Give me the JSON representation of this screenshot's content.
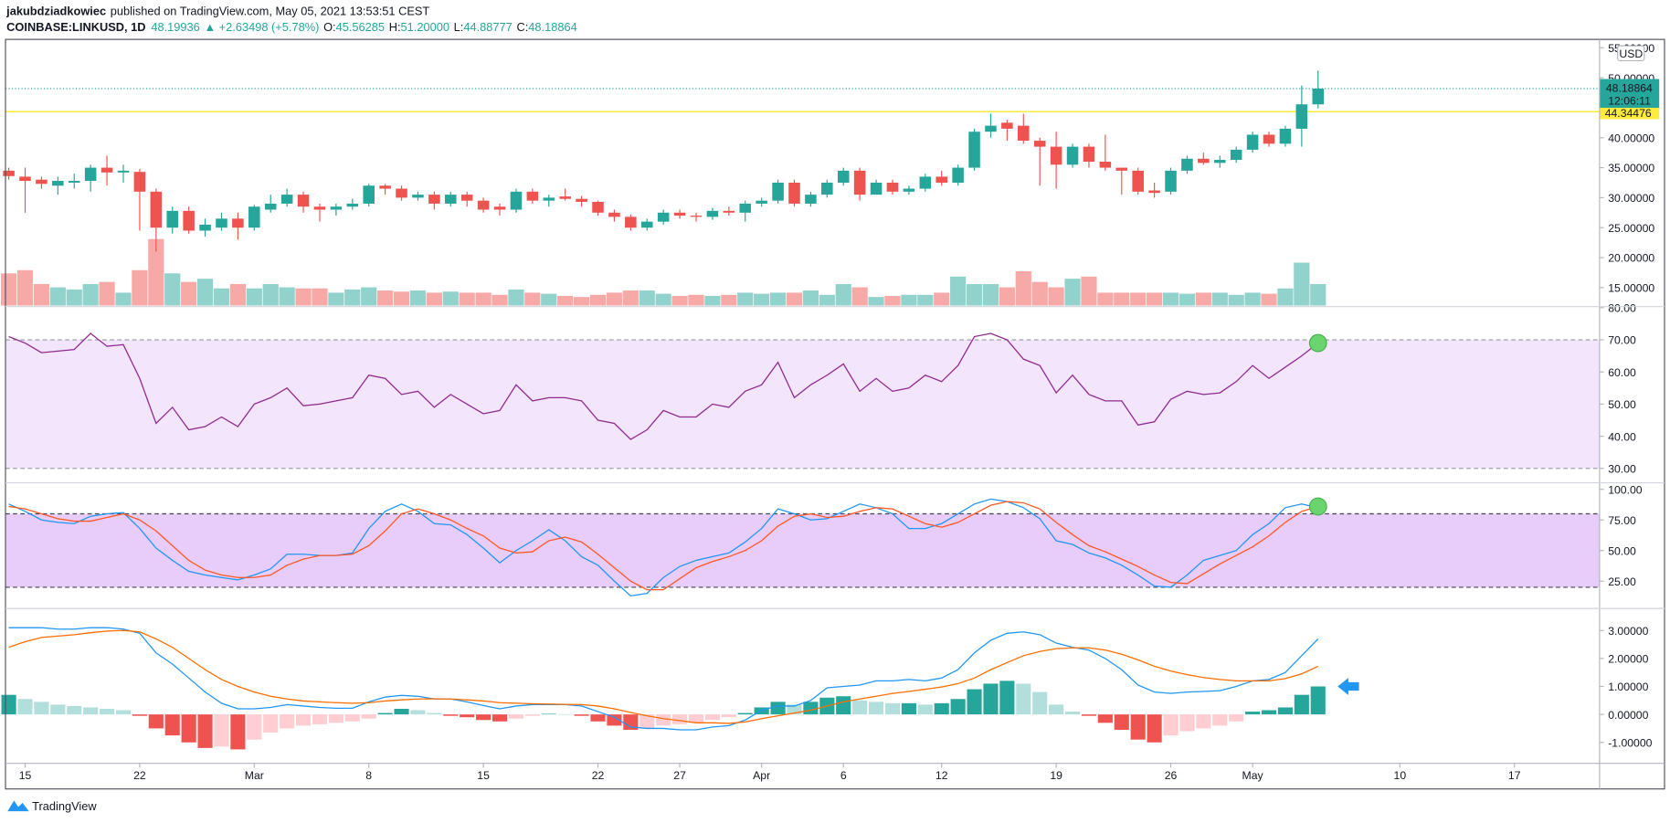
{
  "header": {
    "author": "jakubdziadkowiec",
    "published": "published on TradingView.com, May 05, 2021 13:53:51 CEST",
    "symbol": "COINBASE:LINKUSD, 1D",
    "last": "48.19936",
    "change": "▲ +2.63498 (+5.78%)",
    "open_label": "O:",
    "open": "45.56285",
    "high_label": "H:",
    "high": "51.20000",
    "low_label": "L:",
    "low": "44.88777",
    "close_label": "C:",
    "close": "48.18864"
  },
  "footer": {
    "brand": "TradingView"
  },
  "chart_data": [
    {
      "type": "candlestick",
      "currency": "USD",
      "xlim": [
        -0.2,
        97.2
      ],
      "xticks": [
        {
          "value": 1,
          "label": "15"
        },
        {
          "value": 8,
          "label": "22"
        },
        {
          "value": 15,
          "label": "Mar"
        },
        {
          "value": 22,
          "label": "8"
        },
        {
          "value": 29,
          "label": "15"
        },
        {
          "value": 36,
          "label": "22"
        },
        {
          "value": 41,
          "label": "27"
        },
        {
          "value": 46,
          "label": "Apr"
        },
        {
          "value": 51,
          "label": "6"
        },
        {
          "value": 57,
          "label": "12"
        },
        {
          "value": 64,
          "label": "19"
        },
        {
          "value": 71,
          "label": "26"
        },
        {
          "value": 76,
          "label": "May"
        },
        {
          "value": 85,
          "label": "10"
        },
        {
          "value": 92,
          "label": "17"
        }
      ],
      "ylim": [
        12,
        56.4
      ],
      "yticks": [
        {
          "value": 55,
          "label": "55.00000"
        },
        {
          "value": 50,
          "label": "50.00000"
        },
        {
          "value": 40,
          "label": "40.00000"
        },
        {
          "value": 35,
          "label": "35.00000"
        },
        {
          "value": 30,
          "label": "30.00000"
        },
        {
          "value": 25,
          "label": "25.00000"
        },
        {
          "value": 20,
          "label": "20.00000"
        },
        {
          "value": 15,
          "label": "15.00000"
        }
      ],
      "up_color": "#26a69a",
      "down_color": "#ef5350",
      "open": [
        34.5,
        33.5,
        33,
        32,
        32.5,
        32.8,
        35,
        34.2,
        34.3,
        31,
        25,
        27.8,
        24.5,
        25,
        26.5,
        25,
        28,
        29,
        30.5,
        28.5,
        28,
        28.5,
        29,
        32,
        31.5,
        30,
        30.5,
        29,
        30.5,
        29.5,
        28.5,
        28,
        31,
        29.5,
        30.2,
        29.8,
        29.3,
        27.5,
        26.8,
        25,
        26,
        27.5,
        27,
        26.8,
        27.8,
        27.5,
        29,
        29.5,
        32.5,
        29,
        30.5,
        32.5,
        34.5,
        30.5,
        32.5,
        31,
        31.5,
        33.5,
        32.5,
        35,
        41,
        42.5,
        42,
        39.5,
        38.5,
        35.5,
        38.5,
        36,
        35,
        34.5,
        31.2,
        31,
        34.5,
        36.5,
        35.8,
        36.3,
        38,
        40.5,
        39,
        41.5,
        45.56285
      ],
      "high": [
        35,
        35,
        33.5,
        33.5,
        34,
        35.5,
        37,
        35.5,
        34.8,
        31.5,
        28.5,
        28.5,
        26.5,
        27.5,
        27.5,
        28.8,
        30.5,
        31.5,
        31,
        29,
        29,
        29.8,
        32.3,
        32.3,
        32,
        31,
        31,
        31,
        31,
        30,
        29,
        31.5,
        31.5,
        30.5,
        31.5,
        30.3,
        29.5,
        28,
        27.2,
        26.5,
        28,
        28,
        27.5,
        28.3,
        28.5,
        29.5,
        30,
        33,
        33,
        31,
        33,
        35,
        35,
        33,
        33,
        32,
        34,
        34.5,
        35.5,
        41.5,
        44,
        43,
        44,
        40,
        41,
        39,
        39,
        40.5,
        35,
        35,
        32.5,
        35,
        37,
        37.5,
        37,
        38.5,
        41,
        41,
        42,
        48.7,
        51.2
      ],
      "low": [
        33,
        27.5,
        31.5,
        30.5,
        31.5,
        31,
        32,
        32.5,
        24.5,
        21,
        24,
        24,
        23.5,
        24.5,
        23,
        24.5,
        27.5,
        28.5,
        27.5,
        26,
        27,
        28,
        28.5,
        30.5,
        29.5,
        29.5,
        28,
        28.5,
        28.5,
        27.5,
        27,
        27.5,
        29,
        28.5,
        29.5,
        28.5,
        27,
        26,
        24.5,
        24.5,
        25.5,
        26.5,
        26,
        26.3,
        27,
        26,
        28.5,
        29,
        28.5,
        28.5,
        30,
        32,
        29.5,
        30.5,
        30.5,
        30.5,
        31,
        32,
        32,
        34.5,
        40,
        39.5,
        39,
        32,
        31.5,
        35,
        35,
        34.5,
        30.5,
        30.5,
        30,
        30.5,
        34,
        35.5,
        35,
        35.8,
        37.5,
        38.5,
        38.5,
        38.5,
        44.88777
      ],
      "close": [
        33.6,
        32.8,
        32.3,
        32.8,
        32.8,
        35,
        34.2,
        34.5,
        31,
        25,
        27.8,
        24.5,
        25.5,
        26.5,
        25,
        28.5,
        29,
        30.5,
        28.5,
        28,
        28.5,
        29,
        32,
        31.5,
        30,
        30.5,
        29,
        30.5,
        29.5,
        28,
        28,
        31,
        29.5,
        30,
        29.8,
        29.3,
        27.5,
        26.8,
        25,
        26,
        27.5,
        27,
        26.8,
        27.8,
        27.5,
        29,
        29.5,
        32.5,
        29,
        30.5,
        32.5,
        34.5,
        30.5,
        32.5,
        31,
        31.5,
        33.5,
        32.5,
        35,
        41,
        42,
        41.5,
        39.5,
        38.5,
        35.5,
        38.5,
        36,
        35,
        34.5,
        31,
        30.8,
        34.5,
        36.5,
        35.8,
        36.3,
        38,
        40.5,
        39,
        41.5,
        45.56285,
        48.18864
      ],
      "volume": [
        30,
        33,
        20,
        17,
        15,
        20,
        22,
        12,
        33,
        62,
        30,
        22,
        25,
        16,
        20,
        16,
        20,
        17,
        16,
        16,
        12,
        15,
        17,
        14,
        13,
        14,
        12,
        13,
        12,
        12,
        10,
        15,
        12,
        11,
        9,
        8,
        10,
        12,
        14,
        14,
        11,
        9,
        10,
        9,
        10,
        12,
        11,
        12,
        12,
        14,
        10,
        20,
        17,
        8,
        9,
        10,
        10,
        12,
        27,
        20,
        20,
        17,
        32,
        22,
        17,
        25,
        27,
        12,
        12,
        12,
        12,
        12,
        11,
        12,
        12,
        10,
        12,
        11,
        16,
        40,
        20
      ],
      "price_line": 48.18864,
      "countdown": "12:06:11",
      "level_line": 44.34476,
      "level_color": "#ffeb3b"
    },
    {
      "type": "line",
      "ylim": [
        26,
        80
      ],
      "yticks": [
        {
          "value": 80,
          "label": "80.00"
        },
        {
          "value": 70,
          "label": "70.00"
        },
        {
          "value": 60,
          "label": "60.00"
        },
        {
          "value": 50,
          "label": "50.00"
        },
        {
          "value": 40,
          "label": "40.00"
        },
        {
          "value": 30,
          "label": "30.00"
        }
      ],
      "band": [
        30,
        70
      ],
      "band_color": "#f3e5fc",
      "series": [
        {
          "color": "#8e2a8f",
          "values": [
            71,
            69,
            66,
            66.5,
            67,
            72,
            68,
            68.5,
            58,
            44,
            49,
            42,
            43,
            46,
            43,
            50,
            52,
            55,
            49.5,
            50,
            51,
            52,
            59,
            58,
            53,
            54,
            49,
            53,
            50,
            47,
            48,
            56,
            51,
            52,
            52,
            51,
            45,
            44,
            39,
            42,
            48,
            46,
            46,
            50,
            49,
            54,
            56,
            63,
            52,
            56,
            59,
            62.5,
            54,
            58,
            54,
            55,
            59,
            57,
            62,
            71,
            72,
            70,
            64,
            62,
            53.5,
            59,
            53,
            51,
            51,
            43.5,
            44.5,
            51.5,
            54,
            53,
            53.5,
            57,
            62,
            58,
            61.5,
            65,
            69
          ]
        }
      ],
      "marker": {
        "shape": "dot",
        "color": "#6ad46f"
      }
    },
    {
      "type": "line",
      "ylim": [
        4,
        104
      ],
      "yticks": [
        {
          "value": 100,
          "label": "100.00"
        },
        {
          "value": 75,
          "label": "75.00"
        },
        {
          "value": 50,
          "label": "50.00"
        },
        {
          "value": 25,
          "label": "25.00"
        }
      ],
      "band": [
        20,
        80
      ],
      "band_color": "#e8cdfb",
      "series": [
        {
          "color": "#2196f3",
          "values": [
            88,
            82,
            75,
            73,
            72,
            78,
            80,
            81,
            68,
            52,
            42,
            33,
            30,
            28,
            26,
            30,
            35,
            47,
            47,
            46,
            46,
            48,
            68,
            82,
            88,
            82,
            72,
            71,
            63,
            52,
            40,
            50,
            58,
            67,
            58,
            45,
            38,
            25,
            13,
            15,
            28,
            37,
            42,
            45,
            48,
            57,
            68,
            84,
            80,
            75,
            76,
            82,
            88,
            85,
            80,
            68,
            68,
            72,
            80,
            88,
            92,
            90,
            85,
            76,
            58,
            55,
            48,
            44,
            38,
            30,
            21,
            20,
            30,
            42,
            46,
            50,
            63,
            72,
            85,
            88,
            85
          ]
        },
        {
          "color": "#ff5722",
          "values": [
            86,
            84,
            80,
            76,
            74,
            74,
            77,
            80,
            75,
            66,
            54,
            42,
            34,
            30,
            28,
            28,
            30,
            38,
            43,
            46,
            46,
            47,
            54,
            66,
            80,
            84,
            80,
            75,
            68,
            62,
            52,
            48,
            49,
            58,
            61,
            57,
            47,
            36,
            25,
            18,
            18,
            27,
            36,
            41,
            45,
            50,
            58,
            70,
            78,
            80,
            77,
            78,
            82,
            85,
            84,
            78,
            72,
            69,
            73,
            80,
            87,
            90,
            89,
            84,
            73,
            63,
            54,
            49,
            43,
            37,
            30,
            24,
            23,
            31,
            39,
            46,
            53,
            62,
            73,
            82,
            86
          ]
        }
      ],
      "marker": {
        "shape": "dot",
        "color": "#6ad46f"
      }
    },
    {
      "type": "macd",
      "ylim": [
        -1.75,
        3.73
      ],
      "yticks": [
        {
          "value": 3,
          "label": "3.00000"
        },
        {
          "value": 2,
          "label": "2.00000"
        },
        {
          "value": 1,
          "label": "1.00000"
        },
        {
          "value": 0,
          "label": "0.00000"
        },
        {
          "value": -1,
          "label": "-1.00000"
        }
      ],
      "histogram": [
        0.7,
        0.55,
        0.45,
        0.35,
        0.3,
        0.25,
        0.2,
        0.15,
        -0.05,
        -0.5,
        -0.75,
        -1.0,
        -1.2,
        -1.15,
        -1.25,
        -0.9,
        -0.65,
        -0.5,
        -0.4,
        -0.35,
        -0.3,
        -0.25,
        -0.15,
        0.05,
        0.2,
        0.15,
        0.05,
        -0.05,
        -0.1,
        -0.2,
        -0.25,
        -0.15,
        -0.05,
        0.02,
        0.01,
        -0.05,
        -0.25,
        -0.4,
        -0.55,
        -0.5,
        -0.4,
        -0.35,
        -0.3,
        -0.2,
        -0.1,
        0.05,
        0.25,
        0.45,
        0.35,
        0.45,
        0.6,
        0.65,
        0.5,
        0.45,
        0.4,
        0.4,
        0.35,
        0.4,
        0.55,
        0.9,
        1.1,
        1.2,
        1.1,
        0.8,
        0.35,
        0.1,
        -0.05,
        -0.3,
        -0.55,
        -0.9,
        -1.0,
        -0.75,
        -0.6,
        -0.5,
        -0.4,
        -0.25,
        0.1,
        0.15,
        0.25,
        0.7,
        1.0
      ],
      "hist_colors": [
        "#26a69a",
        "#b2dfdb",
        "#ffcdd2",
        "#ef5350"
      ],
      "series": [
        {
          "color": "#2196f3",
          "values": [
            3.1,
            3.1,
            3.1,
            3.05,
            3.05,
            3.1,
            3.1,
            3.05,
            2.9,
            2.2,
            1.8,
            1.3,
            0.8,
            0.4,
            0.2,
            0.2,
            0.25,
            0.35,
            0.3,
            0.25,
            0.22,
            0.22,
            0.45,
            0.62,
            0.68,
            0.65,
            0.55,
            0.55,
            0.45,
            0.32,
            0.2,
            0.3,
            0.35,
            0.35,
            0.35,
            0.3,
            0.1,
            -0.1,
            -0.45,
            -0.5,
            -0.5,
            -0.55,
            -0.55,
            -0.45,
            -0.4,
            -0.2,
            0.15,
            0.3,
            0.3,
            0.5,
            0.95,
            1.0,
            1.05,
            1.2,
            1.2,
            1.25,
            1.2,
            1.3,
            1.6,
            2.2,
            2.65,
            2.9,
            2.95,
            2.85,
            2.55,
            2.4,
            2.3,
            2.0,
            1.6,
            1.05,
            0.8,
            0.75,
            0.8,
            0.82,
            0.85,
            1.0,
            1.2,
            1.25,
            1.5,
            2.1,
            2.7
          ]
        },
        {
          "color": "#ff6d00",
          "values": [
            2.4,
            2.6,
            2.75,
            2.8,
            2.85,
            2.92,
            2.98,
            3.0,
            2.95,
            2.7,
            2.4,
            2.0,
            1.6,
            1.25,
            1.0,
            0.8,
            0.65,
            0.55,
            0.48,
            0.45,
            0.42,
            0.4,
            0.42,
            0.48,
            0.52,
            0.55,
            0.56,
            0.55,
            0.52,
            0.48,
            0.42,
            0.4,
            0.38,
            0.37,
            0.36,
            0.35,
            0.3,
            0.2,
            0.07,
            -0.05,
            -0.15,
            -0.22,
            -0.3,
            -0.3,
            -0.32,
            -0.27,
            -0.15,
            -0.05,
            0.05,
            0.15,
            0.3,
            0.45,
            0.55,
            0.65,
            0.75,
            0.82,
            0.9,
            0.98,
            1.1,
            1.3,
            1.6,
            1.85,
            2.1,
            2.25,
            2.35,
            2.38,
            2.38,
            2.3,
            2.15,
            1.95,
            1.72,
            1.55,
            1.42,
            1.32,
            1.25,
            1.2,
            1.2,
            1.2,
            1.28,
            1.45,
            1.72
          ]
        }
      ],
      "marker": {
        "shape": "arrow",
        "color": "#2196f3"
      }
    }
  ]
}
